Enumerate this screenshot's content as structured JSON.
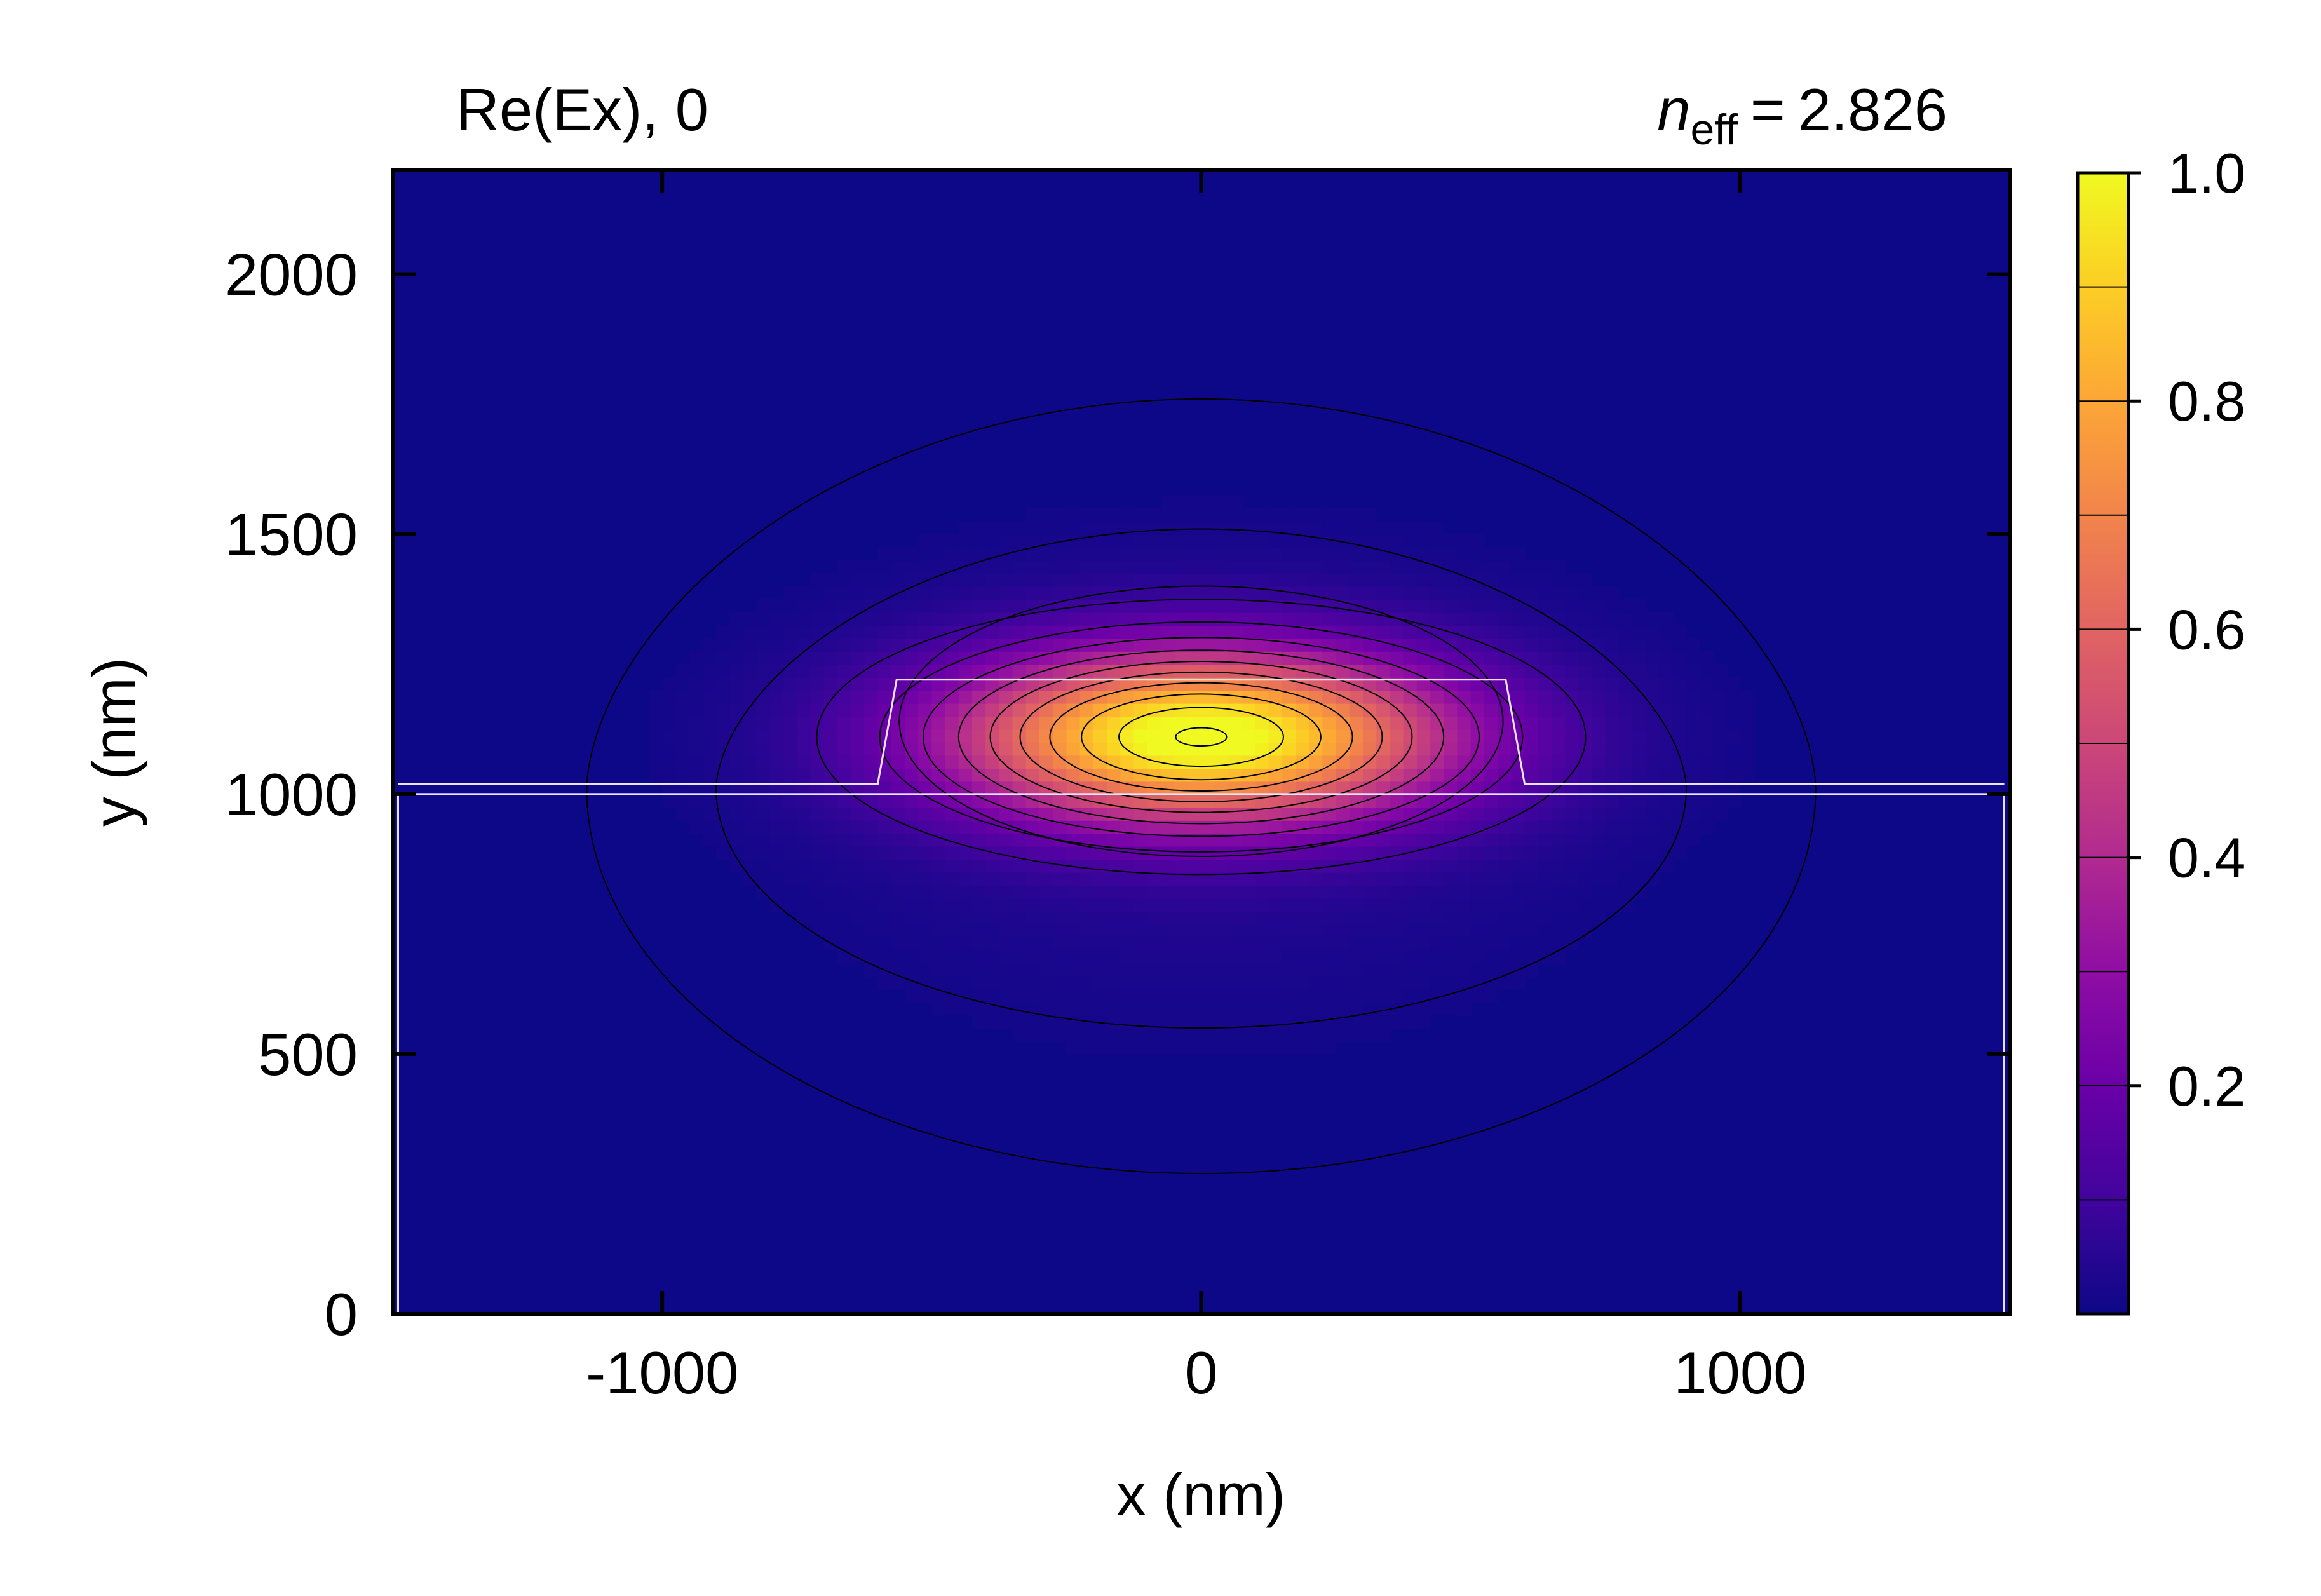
{
  "chart_data": {
    "type": "heatmap",
    "title_left": "Re(Ex), 0",
    "title_right": {
      "symbol": "n",
      "subscript": "eff",
      "operator": "=",
      "value": "2.826"
    },
    "xlabel": "x (nm)",
    "ylabel": "y (nm)",
    "xlim": [
      -1500,
      1500
    ],
    "ylim": [
      0,
      2200
    ],
    "x_ticks": [
      -1000,
      0,
      1000
    ],
    "x_tick_labels": [
      "-1000",
      "0",
      "1000"
    ],
    "y_ticks": [
      0,
      500,
      1000,
      1500,
      2000
    ],
    "y_tick_labels": [
      "0",
      "500",
      "1000",
      "1500",
      "2000"
    ],
    "colormap": "plasma",
    "colorbar": {
      "min": 0,
      "max": 1.0,
      "ticks": [
        0.2,
        0.4,
        0.6,
        0.8,
        1.0
      ],
      "tick_labels": [
        "0.2",
        "0.4",
        "0.6",
        "0.8",
        "1.0"
      ],
      "levels": 10
    },
    "grid": false,
    "field": {
      "peak": 1.0,
      "center_x": 0,
      "center_y": 1110,
      "core_half_width_x": 480,
      "core_half_height_y": 170
    },
    "contour_levels": [
      0.002,
      0.01,
      0.1,
      0.2,
      0.3,
      0.4,
      0.5,
      0.6,
      0.7,
      0.8,
      0.9,
      0.99
    ],
    "structure": {
      "substrate": {
        "x_min": -1490,
        "x_max": 1490,
        "y_min": 0,
        "y_max": 1000
      },
      "slab_top_y": 1020,
      "ridge": {
        "bottom_y": 1020,
        "top_y": 1220,
        "bottom_half_width": 600,
        "top_half_width": 565
      }
    },
    "colors": {
      "background_min": "#0d0887",
      "outline": "#e8e4ff",
      "contour": "#000000"
    }
  }
}
